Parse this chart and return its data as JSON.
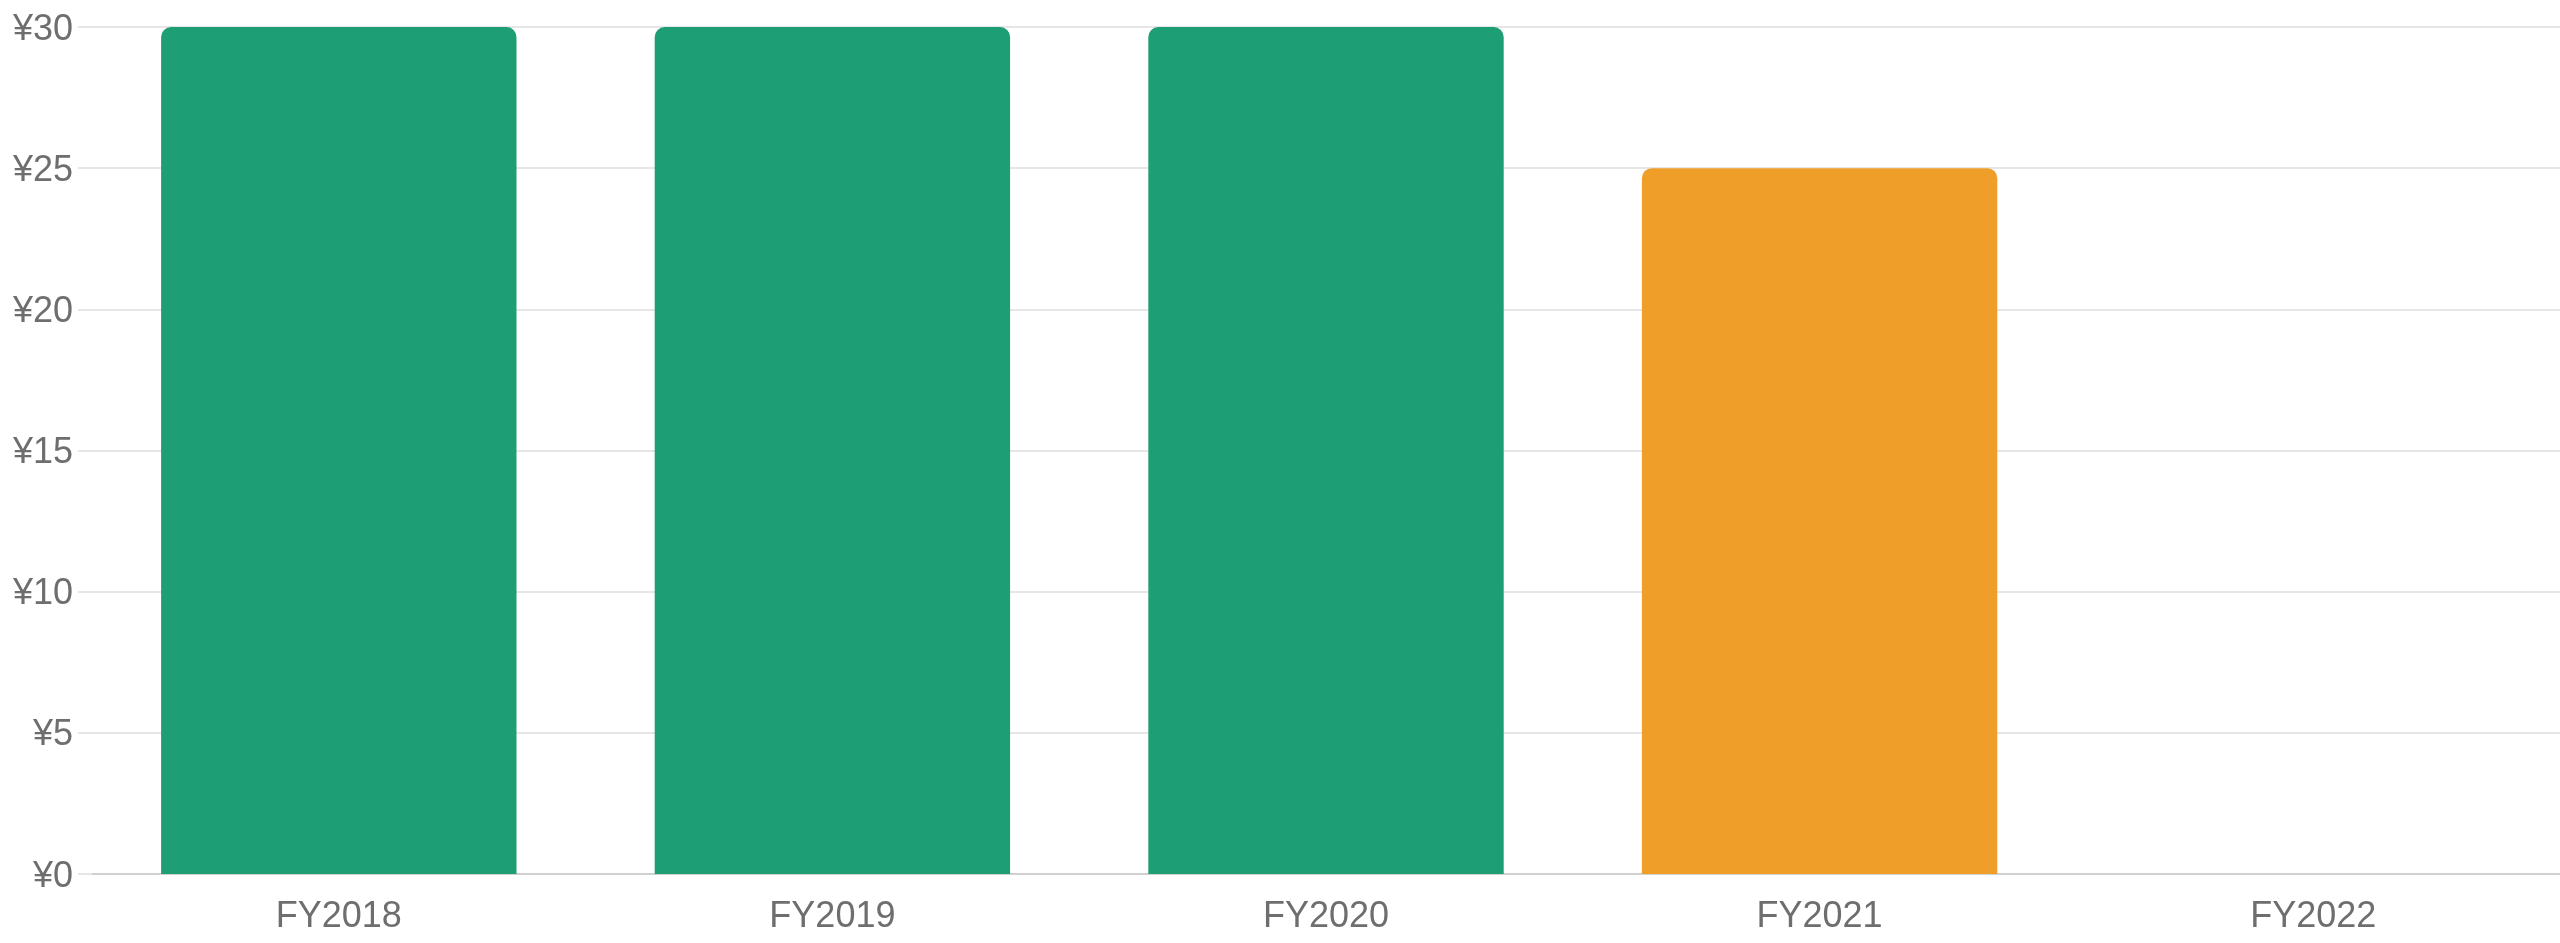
{
  "chart_data": {
    "type": "bar",
    "categories": [
      "FY2018",
      "FY2019",
      "FY2020",
      "FY2021",
      "FY2022"
    ],
    "values": [
      30,
      30,
      30,
      25,
      null
    ],
    "colors": [
      "#1e9e75",
      "#1e9e75",
      "#1e9e75",
      "#ef9f29",
      null
    ],
    "ylim": [
      0,
      30
    ],
    "yticks": [
      {
        "value": 0,
        "label": "¥0"
      },
      {
        "value": 5,
        "label": "¥5"
      },
      {
        "value": 10,
        "label": "¥10"
      },
      {
        "value": 15,
        "label": "¥15"
      },
      {
        "value": 20,
        "label": "¥20"
      },
      {
        "value": 25,
        "label": "¥25"
      },
      {
        "value": 30,
        "label": "¥30"
      }
    ],
    "grid": "y"
  }
}
